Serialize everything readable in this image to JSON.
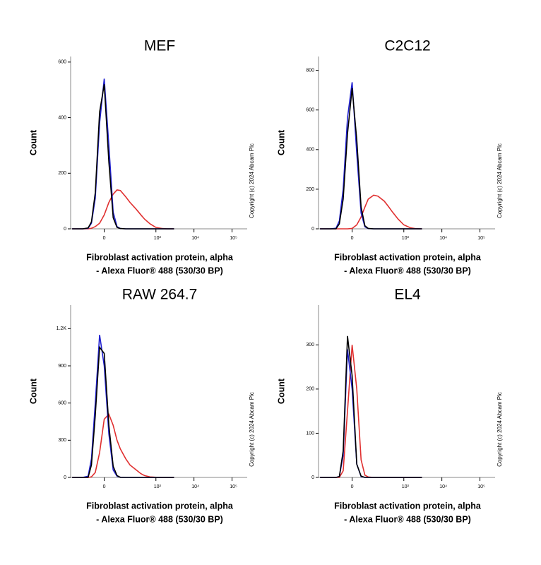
{
  "chart_data": [
    {
      "type": "line",
      "title": "MEF",
      "y_label": "Count",
      "x_label": [
        "Fibroblast activation protein, alpha",
        "- Alexa Fluor® 488 (530/30 BP)"
      ],
      "annotation": "Copyright (c) 2024 Abcam Plc",
      "xscale": "biexponential",
      "xlim": [
        -330,
        250000
      ],
      "ylim": [
        0,
        620
      ],
      "xticks": [
        0,
        {
          "value": 1000,
          "label": "10³"
        },
        {
          "value": 10000,
          "label": "10⁴"
        },
        {
          "value": 100000,
          "label": "10⁵"
        }
      ],
      "yticks": [
        0,
        200,
        400,
        600
      ],
      "x": [
        -300,
        -200,
        -150,
        -100,
        -75,
        -50,
        -25,
        0,
        25,
        50,
        75,
        100,
        150,
        200,
        300,
        400,
        500,
        700,
        1000,
        1500,
        2000,
        3000
      ],
      "series": [
        {
          "color": "#e03030",
          "values": [
            0,
            0,
            0,
            0,
            2,
            8,
            20,
            50,
            95,
            125,
            140,
            138,
            115,
            95,
            70,
            50,
            35,
            18,
            5,
            1,
            0,
            0
          ]
        },
        {
          "color": "#2020d0",
          "values": [
            0,
            0,
            0,
            2,
            20,
            110,
            380,
            540,
            300,
            60,
            8,
            1,
            0,
            0,
            0,
            0,
            0,
            0,
            0,
            0,
            0,
            0
          ]
        },
        {
          "color": "#000000",
          "values": [
            0,
            0,
            0,
            3,
            25,
            130,
            420,
            520,
            240,
            40,
            5,
            1,
            0,
            0,
            0,
            0,
            0,
            0,
            0,
            0,
            0,
            0
          ]
        }
      ]
    },
    {
      "type": "line",
      "title": "C2C12",
      "y_label": "Count",
      "x_label": [
        "Fibroblast activation protein, alpha",
        "- Alexa Fluor® 488 (530/30 BP)"
      ],
      "annotation": "Copyright (c) 2024 Abcam Plc",
      "xscale": "biexponential",
      "xlim": [
        -330,
        250000
      ],
      "ylim": [
        0,
        870
      ],
      "xticks": [
        0,
        {
          "value": 1000,
          "label": "10³"
        },
        {
          "value": 10000,
          "label": "10⁴"
        },
        {
          "value": 100000,
          "label": "10⁵"
        }
      ],
      "yticks": [
        0,
        200,
        400,
        600,
        800
      ],
      "x": [
        -300,
        -200,
        -150,
        -100,
        -75,
        -50,
        -25,
        0,
        25,
        50,
        75,
        100,
        150,
        200,
        300,
        400,
        500,
        700,
        1000,
        1500,
        2000,
        3000
      ],
      "series": [
        {
          "color": "#e03030",
          "values": [
            0,
            0,
            0,
            0,
            0,
            0,
            0,
            2,
            20,
            60,
            110,
            150,
            170,
            165,
            140,
            110,
            85,
            50,
            20,
            5,
            1,
            0
          ]
        },
        {
          "color": "#2020d0",
          "values": [
            0,
            0,
            0,
            3,
            40,
            200,
            560,
            740,
            380,
            80,
            10,
            1,
            0,
            0,
            0,
            0,
            0,
            0,
            0,
            0,
            0,
            0
          ]
        },
        {
          "color": "#000000",
          "values": [
            0,
            0,
            0,
            0,
            25,
            150,
            480,
            710,
            450,
            110,
            15,
            2,
            0,
            0,
            0,
            0,
            0,
            0,
            0,
            0,
            0,
            0
          ]
        }
      ]
    },
    {
      "type": "line",
      "title": "RAW 264.7",
      "y_label": "Count",
      "x_label": [
        "Fibroblast activation protein, alpha",
        "- Alexa Fluor® 488 (530/30 BP)"
      ],
      "annotation": "Copyright (c) 2024 Abcam Plc",
      "xscale": "biexponential",
      "xlim": [
        -330,
        250000
      ],
      "ylim": [
        0,
        1390
      ],
      "xticks": [
        0,
        {
          "value": 1000,
          "label": "10³"
        },
        {
          "value": 10000,
          "label": "10⁴"
        },
        {
          "value": 100000,
          "label": "10⁵"
        }
      ],
      "yticks": [
        0,
        300,
        600,
        900,
        {
          "value": 1200,
          "label": "1.2K"
        }
      ],
      "x": [
        -300,
        -200,
        -150,
        -100,
        -75,
        -50,
        -25,
        0,
        25,
        50,
        75,
        100,
        150,
        200,
        300,
        400,
        500,
        700,
        1000,
        1500,
        2000,
        3000
      ],
      "series": [
        {
          "color": "#e03030",
          "values": [
            0,
            0,
            0,
            0,
            5,
            40,
            200,
            470,
            510,
            420,
            300,
            230,
            150,
            100,
            60,
            30,
            15,
            4,
            1,
            0,
            0,
            0
          ]
        },
        {
          "color": "#2020d0",
          "values": [
            0,
            0,
            0,
            10,
            150,
            600,
            1150,
            900,
            350,
            60,
            10,
            2,
            0,
            0,
            0,
            0,
            0,
            0,
            0,
            0,
            0,
            0
          ]
        },
        {
          "color": "#000000",
          "values": [
            0,
            0,
            0,
            0,
            100,
            500,
            1050,
            1000,
            420,
            90,
            15,
            0,
            0,
            0,
            0,
            0,
            0,
            0,
            0,
            0,
            0,
            0
          ]
        }
      ]
    },
    {
      "type": "line",
      "title": "EL4",
      "y_label": "Count",
      "x_label": [
        "Fibroblast activation protein, alpha",
        "- Alexa Fluor® 488 (530/30 BP)"
      ],
      "annotation": "Copyright (c) 2024 Abcam Plc",
      "xscale": "biexponential",
      "xlim": [
        -330,
        250000
      ],
      "ylim": [
        0,
        390
      ],
      "xticks": [
        0,
        {
          "value": 1000,
          "label": "10³"
        },
        {
          "value": 10000,
          "label": "10⁴"
        },
        {
          "value": 100000,
          "label": "10⁵"
        }
      ],
      "yticks": [
        0,
        100,
        200,
        300
      ],
      "x": [
        -300,
        -200,
        -150,
        -100,
        -75,
        -50,
        -25,
        0,
        25,
        50,
        75,
        100,
        150,
        200,
        300,
        400,
        500,
        700,
        1000,
        1500,
        2000,
        3000
      ],
      "series": [
        {
          "color": "#e03030",
          "values": [
            0,
            0,
            0,
            0,
            0,
            15,
            150,
            300,
            200,
            40,
            5,
            1,
            0,
            0,
            0,
            0,
            0,
            0,
            0,
            0,
            0,
            0
          ]
        },
        {
          "color": "#2020d0",
          "values": [
            0,
            0,
            0,
            0,
            2,
            50,
            290,
            200,
            30,
            2,
            0,
            0,
            0,
            0,
            0,
            0,
            0,
            0,
            0,
            0,
            0,
            0
          ]
        },
        {
          "color": "#000000",
          "values": [
            0,
            0,
            0,
            0,
            2,
            60,
            320,
            230,
            30,
            3,
            0,
            0,
            0,
            0,
            0,
            0,
            0,
            0,
            0,
            0,
            0,
            0
          ]
        }
      ]
    }
  ]
}
